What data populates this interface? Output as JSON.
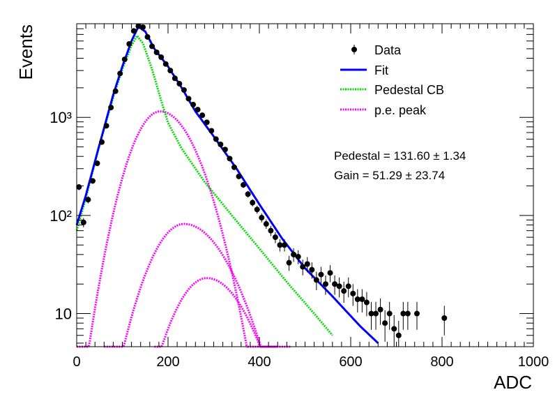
{
  "chart_data": {
    "type": "scatter",
    "xlabel": "ADC",
    "ylabel": "Events",
    "xlim": [
      0,
      1000
    ],
    "ylim": [
      4.6,
      9000
    ],
    "y_scale": "log",
    "grid": false,
    "legend_position": "top-right",
    "x_ticks": [
      0,
      200,
      400,
      600,
      800,
      1000
    ],
    "x_tick_labels": [
      "0",
      "200",
      "400",
      "600",
      "800",
      "1000"
    ],
    "y_ticks": [
      10,
      100,
      1000
    ],
    "y_tick_labels": [
      "10",
      "10²",
      "10³"
    ],
    "annotations": {
      "pedestal": "Pedestal = 131.60 ± 1.34",
      "gain": "Gain = 51.29 ± 23.74"
    },
    "series": [
      {
        "name": "Data",
        "kind": "points",
        "color": "#000000",
        "x": [
          5,
          15,
          25,
          35,
          45,
          55,
          65,
          75,
          85,
          95,
          105,
          115,
          125,
          135,
          145,
          155,
          165,
          175,
          185,
          195,
          205,
          215,
          225,
          235,
          245,
          255,
          265,
          275,
          285,
          295,
          305,
          315,
          325,
          335,
          345,
          355,
          365,
          375,
          385,
          395,
          405,
          415,
          425,
          435,
          445,
          455,
          465,
          475,
          485,
          495,
          505,
          515,
          525,
          535,
          545,
          555,
          565,
          575,
          585,
          595,
          605,
          615,
          625,
          635,
          645,
          655,
          665,
          675,
          685,
          695,
          705,
          715,
          725,
          745,
          805
        ],
        "y": [
          195,
          85,
          145,
          225,
          340,
          560,
          820,
          1260,
          1850,
          2800,
          3900,
          5600,
          7600,
          8500,
          8300,
          6600,
          5300,
          4600,
          4100,
          3500,
          3000,
          2500,
          2200,
          1900,
          1550,
          1350,
          1200,
          1050,
          890,
          730,
          600,
          530,
          470,
          380,
          310,
          250,
          205,
          165,
          135,
          115,
          95,
          82,
          70,
          60,
          50,
          50,
          33,
          40,
          38,
          30,
          32,
          28,
          22,
          25,
          20,
          26,
          20,
          19,
          17,
          19,
          16,
          14,
          14,
          13,
          10,
          10,
          11,
          8,
          10,
          7,
          6,
          10,
          10,
          10,
          9
        ]
      },
      {
        "name": "Fit",
        "kind": "line",
        "style": "solid",
        "color": "#0000ff"
      },
      {
        "name": "Pedestal CB",
        "kind": "line",
        "style": "dotted",
        "color": "#00dd00"
      },
      {
        "name": "p.e. peak",
        "kind": "line",
        "style": "dotted",
        "color": "#ff00ff",
        "peaks": [
          {
            "mean": 183,
            "amplitude": 1150
          },
          {
            "mean": 235,
            "amplitude": 82
          },
          {
            "mean": 285,
            "amplitude": 23
          }
        ]
      }
    ]
  }
}
